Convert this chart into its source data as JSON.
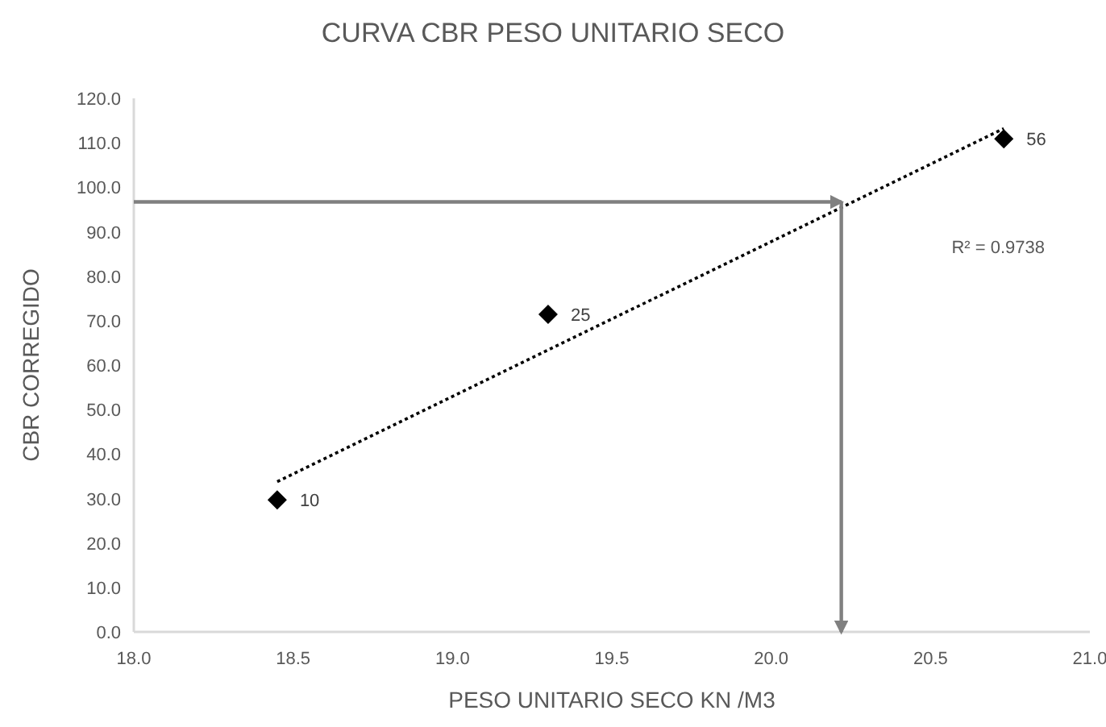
{
  "chart_data": {
    "type": "scatter",
    "title": "CURVA CBR  PESO UNITARIO SECO",
    "xlabel": "PESO UNITARIO SECO KN /M3",
    "ylabel": "CBR CORREGIDO",
    "xlim": [
      18.0,
      21.0
    ],
    "xticks": [
      {
        "value": 18,
        "label": "18.0"
      },
      {
        "value": 18.5,
        "label": "18.5"
      },
      {
        "value": 19,
        "label": "19.0"
      },
      {
        "value": 19.5,
        "label": "19.5"
      },
      {
        "value": 20,
        "label": "20.0"
      },
      {
        "value": 20.5,
        "label": "20.5"
      },
      {
        "value": 21,
        "label": "21.0"
      }
    ],
    "ylim": [
      0,
      120
    ],
    "yticks": [
      {
        "value": 0,
        "label": "0.0"
      },
      {
        "value": 10,
        "label": "10.0"
      },
      {
        "value": 20,
        "label": "20.0"
      },
      {
        "value": 30,
        "label": "30.0"
      },
      {
        "value": 40,
        "label": "40.0"
      },
      {
        "value": 50,
        "label": "50.0"
      },
      {
        "value": 60,
        "label": "60.0"
      },
      {
        "value": 70,
        "label": "70.0"
      },
      {
        "value": 80,
        "label": "80.0"
      },
      {
        "value": 90,
        "label": "90.0"
      },
      {
        "value": 100,
        "label": "100.0"
      },
      {
        "value": 110,
        "label": "110.0"
      },
      {
        "value": 120,
        "label": "120.0"
      }
    ],
    "grid": false,
    "series": [
      {
        "color": "#000000",
        "marker": "diamond",
        "x": [
          18.45,
          19.3,
          20.73
        ],
        "values": [
          29.7,
          71.4,
          110.9
        ]
      },
      {
        "type": "line",
        "color": "#000000",
        "line_style": "dotted",
        "marker": "none",
        "x": [
          18.45,
          20.73
        ],
        "values": [
          33.8,
          113.2
        ]
      },
      {
        "type": "line",
        "color": "#808080",
        "line_style": "solid",
        "marker": "none",
        "x": [
          18.0,
          20.22
        ],
        "values": [
          96.7,
          96.7
        ]
      },
      {
        "type": "line",
        "color": "#808080",
        "line_style": "solid",
        "marker": "none",
        "x": [
          20.22,
          20.22
        ],
        "values": [
          96.7,
          0
        ]
      }
    ],
    "annotations": [
      {
        "text": "10",
        "x": 18.45,
        "y": 29.7
      },
      {
        "text": "25",
        "x": 19.3,
        "y": 71.4
      },
      {
        "text": "56",
        "x": 20.73,
        "y": 110.9
      },
      "R² = 0.9738"
    ]
  }
}
